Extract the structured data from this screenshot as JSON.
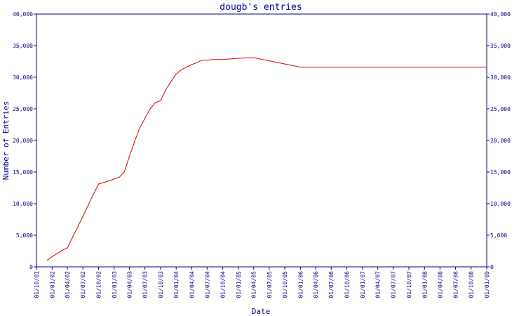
{
  "chart_data": {
    "type": "line",
    "title": "dougb's entries",
    "xlabel": "Date",
    "ylabel": "Number of Entries",
    "ylim": [
      0,
      40000
    ],
    "y_ticks": [
      0,
      5000,
      10000,
      15000,
      20000,
      25000,
      30000,
      35000,
      40000
    ],
    "y_tick_labels": [
      "0",
      "5,000",
      "10,000",
      "15,000",
      "20,000",
      "25,000",
      "30,000",
      "35,000",
      "40,000"
    ],
    "x_tick_labels": [
      "01/10/01",
      "01/01/02",
      "01/04/02",
      "01/07/02",
      "01/10/02",
      "01/01/03",
      "01/04/03",
      "01/07/03",
      "01/10/03",
      "01/01/04",
      "01/04/04",
      "01/07/04",
      "01/10/04",
      "01/01/05",
      "01/04/05",
      "01/07/05",
      "01/10/05",
      "01/01/06",
      "01/04/06",
      "01/07/06",
      "01/10/06",
      "01/01/07",
      "01/04/07",
      "01/07/07",
      "01/10/07",
      "01/01/08",
      "01/04/08",
      "01/07/08",
      "01/10/08",
      "01/01/09"
    ],
    "grid": false,
    "series_color": "#dd0000",
    "axis_color": "#000080",
    "series": [
      {
        "x": [
          "2001-12-01",
          "2002-01-01",
          "2002-03-01",
          "2002-04-01",
          "2002-07-01",
          "2002-09-01",
          "2002-10-01",
          "2002-12-01",
          "2003-01-01",
          "2003-02-01",
          "2003-03-01",
          "2003-04-01",
          "2003-05-01",
          "2003-06-01",
          "2003-07-01",
          "2003-08-01",
          "2003-09-01",
          "2003-10-01",
          "2003-11-01",
          "2003-12-01",
          "2004-01-01",
          "2004-02-01",
          "2004-03-01",
          "2004-04-01",
          "2004-05-01",
          "2004-06-01",
          "2004-07-01",
          "2004-08-01",
          "2004-09-01",
          "2004-10-01",
          "2005-01-01",
          "2005-04-01",
          "2005-07-01",
          "2005-10-01",
          "2006-01-01",
          "2008-12-31"
        ],
        "y": [
          1000,
          1600,
          2600,
          3000,
          8000,
          11500,
          13100,
          13600,
          13900,
          14200,
          15000,
          17500,
          19800,
          22000,
          23500,
          25000,
          26000,
          26300,
          28000,
          29300,
          30500,
          31200,
          31600,
          32000,
          32300,
          32700,
          32700,
          32800,
          32800,
          32800,
          33000,
          33100,
          32600,
          32100,
          31600,
          31600
        ]
      }
    ]
  }
}
